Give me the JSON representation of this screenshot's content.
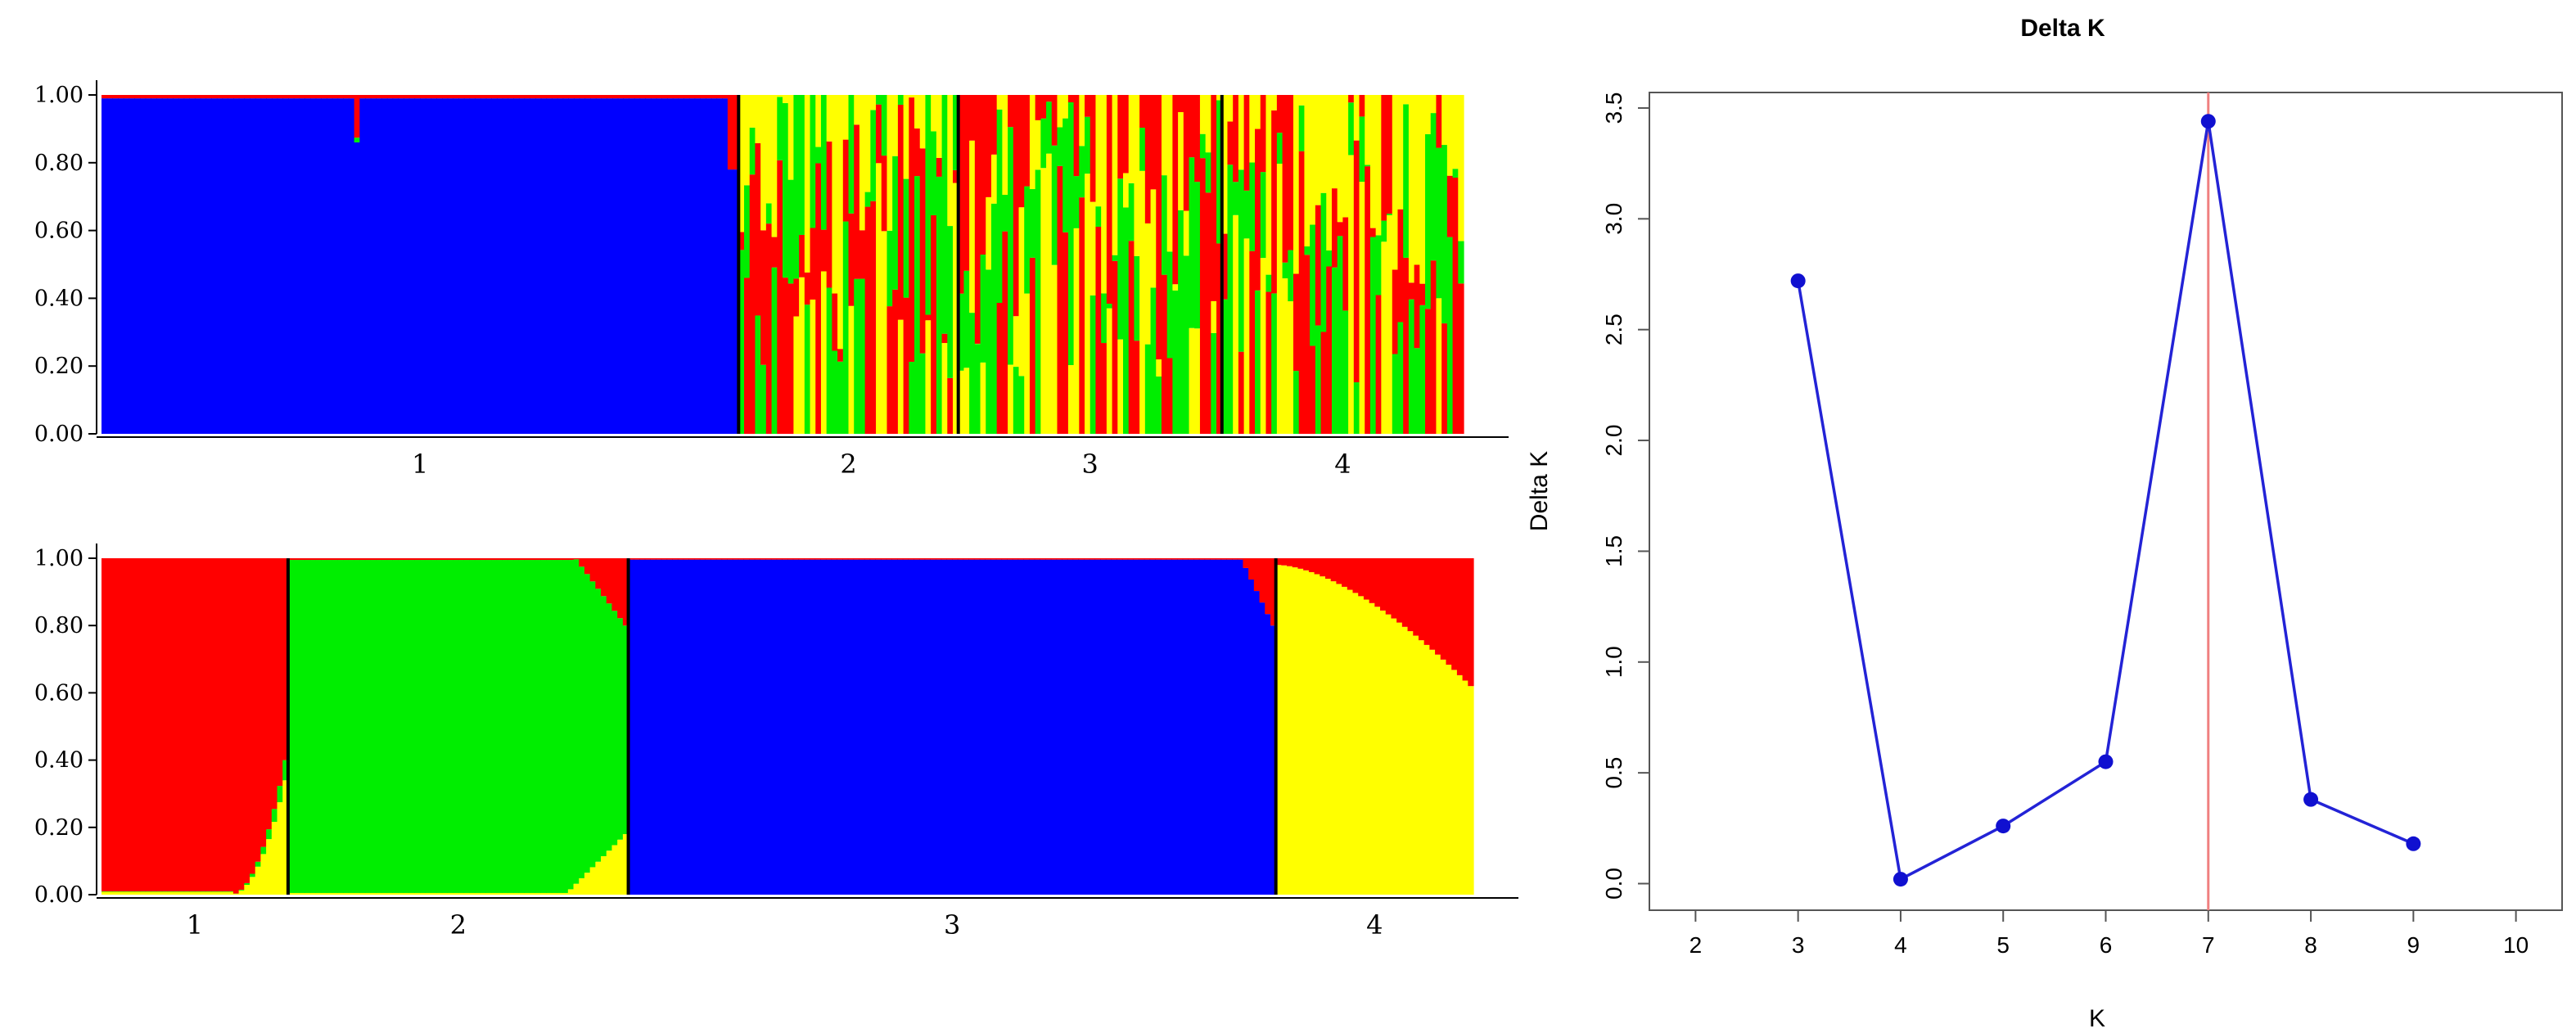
{
  "chart_data": [
    {
      "type": "bar",
      "subtype": "stacked-bar (population structure, K=4)",
      "ylim": [
        0,
        1
      ],
      "y_ticks": [
        "0.00",
        "0.20",
        "0.40",
        "0.60",
        "0.80",
        "1.00"
      ],
      "group_labels": [
        "1",
        "2",
        "3",
        "4"
      ],
      "component_colors": [
        "#0000ff",
        "#ff0000",
        "#00ee00",
        "#ffff00"
      ],
      "groups": [
        {
          "label": "1",
          "individuals": 116,
          "dominant": "blue",
          "notes": "nearly all blue (~1.00); one individual ~0.87 blue / 0.13 red; last individuals ~0.78 blue"
        },
        {
          "label": "2",
          "individuals": 40,
          "dominant": "mixed red/green/yellow"
        },
        {
          "label": "3",
          "individuals": 48,
          "dominant": "mixed green/yellow/red"
        },
        {
          "label": "4",
          "individuals": 44,
          "dominant": "mixed green/red/yellow"
        }
      ]
    },
    {
      "type": "bar",
      "subtype": "stacked-bar (population structure, K=4)",
      "ylim": [
        0,
        1
      ],
      "y_ticks": [
        "0.00",
        "0.20",
        "0.40",
        "0.60",
        "0.80",
        "1.00"
      ],
      "group_labels": [
        "1",
        "2",
        "3",
        "4"
      ],
      "component_colors": [
        "#ff0000",
        "#00ee00",
        "#0000ff",
        "#ffff00"
      ],
      "groups": [
        {
          "label": "1",
          "individuals": 34,
          "dominant": "red",
          "notes": "red ~1.00, rising yellow/green admixture in last individuals (up to ~0.40)"
        },
        {
          "label": "2",
          "individuals": 62,
          "dominant": "green",
          "notes": "green ~0.97-1.00, small yellow at end (~0.18), red tops up to ~0.20"
        },
        {
          "label": "3",
          "individuals": 118,
          "dominant": "blue",
          "notes": "blue ~1.00, last individuals ~0.78-0.88 blue with red"
        },
        {
          "label": "4",
          "individuals": 36,
          "dominant": "yellow",
          "notes": "yellow ~0.98 decreasing to ~0.62 with red on top"
        }
      ]
    },
    {
      "type": "line",
      "title": "Delta K",
      "xlabel": "K",
      "ylabel": "Delta K",
      "x": [
        3,
        4,
        5,
        6,
        7,
        8,
        9
      ],
      "y": [
        2.72,
        0.02,
        0.26,
        0.55,
        3.44,
        0.38,
        0.18
      ],
      "xlim": [
        1.55,
        10.45
      ],
      "ylim": [
        -0.12,
        3.57
      ],
      "x_ticks": [
        "2",
        "3",
        "4",
        "5",
        "6",
        "7",
        "8",
        "9",
        "10"
      ],
      "y_ticks": [
        "0.0",
        "0.5",
        "1.0",
        "1.5",
        "2.0",
        "2.5",
        "3.0",
        "3.5"
      ],
      "vline_x": 7,
      "line_color": "#2323d6",
      "point_color": "#1010d0",
      "vline_color": "#f08080"
    }
  ]
}
